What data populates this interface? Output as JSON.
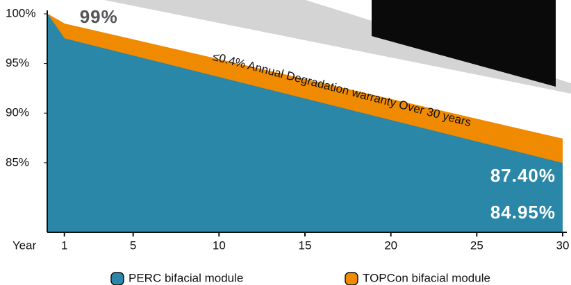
{
  "chart_data": {
    "type": "area",
    "x_label": "Year",
    "x": [
      0,
      1,
      30
    ],
    "xlim": [
      0,
      30
    ],
    "xticks": [
      1,
      5,
      10,
      15,
      20,
      25,
      30
    ],
    "ylim": [
      78,
      100
    ],
    "yticks": [
      {
        "value": 85,
        "label": "85%"
      },
      {
        "value": 90,
        "label": "90%"
      },
      {
        "value": 95,
        "label": "95%"
      },
      {
        "value": 100,
        "label": "100%"
      }
    ],
    "series": [
      {
        "name": "PERC bifacial module",
        "color": "#2a87a8",
        "values": [
          100,
          97.5,
          84.95
        ],
        "value_labels": [
          null,
          null,
          "84.95%"
        ]
      },
      {
        "name": "TOPCon bifacial module",
        "color": "#f08a00",
        "values": [
          100,
          99,
          87.4
        ],
        "value_labels": [
          null,
          "99%",
          "87.40%"
        ]
      }
    ],
    "annotation": "≤0.4% Annual Degradation warranty Over 30 years"
  }
}
